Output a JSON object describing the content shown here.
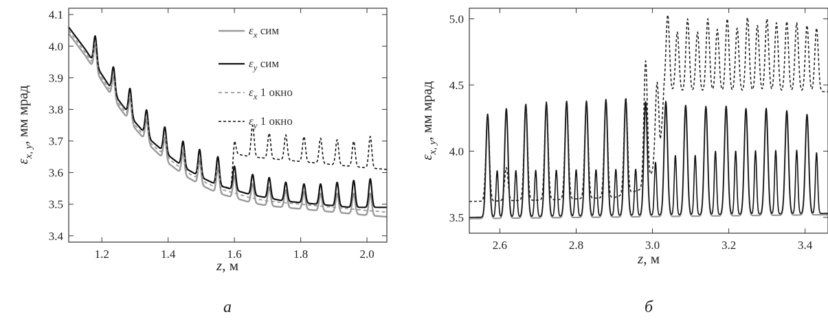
{
  "chart_data": [
    {
      "type": "line",
      "panel_label": "а",
      "xlabel": {
        "var": "z",
        "unit": ", м"
      },
      "ylabel": {
        "var": "ε",
        "sub": "x, y",
        "unit": ", мм мрад"
      },
      "xlim": [
        1.1,
        2.06
      ],
      "ylim": [
        3.38,
        4.12
      ],
      "xticks": [
        "1.2",
        "1.4",
        "1.6",
        "1.8",
        "2.0"
      ],
      "yticks": [
        "3.4",
        "3.5",
        "3.6",
        "3.7",
        "3.8",
        "3.9",
        "4.0",
        "4.1"
      ],
      "grid": false,
      "legend_position": "top-right",
      "series": [
        {
          "legend": {
            "var": "ε",
            "sub": "x",
            "suffix": " сим"
          },
          "color": "#999999",
          "dash": "",
          "width": 2.4,
          "x": [
            1.1,
            1.15,
            1.2,
            1.25,
            1.3,
            1.35,
            1.4,
            1.45,
            1.5,
            1.55,
            1.6,
            1.65,
            1.7,
            1.75,
            1.8,
            1.85,
            1.9,
            1.95,
            2.0,
            2.06
          ],
          "y": [
            4.04,
            3.97,
            3.89,
            3.81,
            3.74,
            3.68,
            3.63,
            3.59,
            3.56,
            3.535,
            3.52,
            3.505,
            3.495,
            3.49,
            3.485,
            3.48,
            3.475,
            3.47,
            3.465,
            3.46
          ],
          "peak_x": [
            1.18,
            1.235,
            1.285,
            1.335,
            1.39,
            1.445,
            1.495,
            1.55,
            1.6,
            1.655,
            1.705,
            1.755,
            1.81,
            1.86,
            1.91,
            1.96,
            2.01
          ],
          "peak_height": [
            0.08,
            0.07,
            0.075,
            0.07,
            0.07,
            0.07,
            0.075,
            0.08,
            0.07,
            0.06,
            0.06,
            0.055,
            0.055,
            0.055,
            0.06,
            0.065,
            0.07
          ]
        },
        {
          "legend": {
            "var": "ε",
            "sub": "y",
            "suffix": " сим"
          },
          "color": "#111111",
          "dash": "",
          "width": 2.2,
          "x": [
            1.1,
            1.15,
            1.2,
            1.25,
            1.3,
            1.35,
            1.4,
            1.45,
            1.5,
            1.55,
            1.6,
            1.65,
            1.7,
            1.75,
            1.8,
            1.85,
            1.9,
            1.95,
            2.0,
            2.06
          ],
          "y": [
            4.06,
            3.99,
            3.91,
            3.83,
            3.76,
            3.7,
            3.655,
            3.615,
            3.585,
            3.56,
            3.545,
            3.53,
            3.52,
            3.51,
            3.505,
            3.5,
            3.495,
            3.49,
            3.49,
            3.49
          ],
          "peak_x": [
            1.18,
            1.235,
            1.285,
            1.335,
            1.39,
            1.445,
            1.495,
            1.55,
            1.6,
            1.655,
            1.705,
            1.755,
            1.81,
            1.86,
            1.91,
            1.96,
            2.01
          ],
          "peak_height": [
            0.09,
            0.08,
            0.085,
            0.08,
            0.08,
            0.08,
            0.085,
            0.09,
            0.075,
            0.065,
            0.065,
            0.06,
            0.06,
            0.065,
            0.075,
            0.085,
            0.09
          ]
        },
        {
          "legend": {
            "var": "ε",
            "sub": "x",
            "suffix": " 1 окно"
          },
          "color": "#999999",
          "dash": "5,4",
          "width": 1.8,
          "x": [
            1.1,
            1.15,
            1.2,
            1.25,
            1.3,
            1.35,
            1.4,
            1.45,
            1.5,
            1.55,
            1.6,
            1.65,
            1.7,
            1.75,
            1.8,
            1.85,
            1.9,
            1.95,
            2.0,
            2.06
          ],
          "y": [
            4.05,
            3.98,
            3.9,
            3.82,
            3.75,
            3.69,
            3.645,
            3.605,
            3.575,
            3.55,
            3.535,
            3.52,
            3.51,
            3.505,
            3.5,
            3.495,
            3.49,
            3.485,
            3.48,
            3.475
          ],
          "peak_x": [
            1.18,
            1.235,
            1.285,
            1.335,
            1.39,
            1.445,
            1.495,
            1.55
          ],
          "peak_height": [
            0.08,
            0.07,
            0.075,
            0.07,
            0.07,
            0.07,
            0.075,
            0.08
          ]
        },
        {
          "legend": {
            "var": "ε",
            "sub": "y",
            "suffix": " 1 окно"
          },
          "color": "#111111",
          "dash": "4,3",
          "width": 1.6,
          "x": [
            1.1,
            1.15,
            1.2,
            1.25,
            1.3,
            1.35,
            1.4,
            1.45,
            1.5,
            1.55,
            1.59,
            1.6,
            1.65,
            1.7,
            1.75,
            1.8,
            1.85,
            1.9,
            1.95,
            2.0,
            2.06
          ],
          "y": [
            4.06,
            3.99,
            3.91,
            3.83,
            3.76,
            3.7,
            3.655,
            3.615,
            3.585,
            3.56,
            3.55,
            3.66,
            3.65,
            3.645,
            3.64,
            3.635,
            3.63,
            3.625,
            3.62,
            3.615,
            3.61
          ],
          "peak_x": [
            1.18,
            1.235,
            1.285,
            1.335,
            1.39,
            1.445,
            1.495,
            1.55,
            1.6,
            1.655,
            1.705,
            1.755,
            1.81,
            1.86,
            1.91,
            1.96,
            2.01
          ],
          "peak_height": [
            0.09,
            0.08,
            0.085,
            0.08,
            0.08,
            0.08,
            0.085,
            0.09,
            0.04,
            0.1,
            0.08,
            0.08,
            0.08,
            0.08,
            0.08,
            0.08,
            0.1
          ]
        }
      ]
    },
    {
      "type": "line",
      "panel_label": "б",
      "xlabel": {
        "var": "z",
        "unit": ", м"
      },
      "ylabel": {
        "var": "ε",
        "sub": "x, y",
        "unit": ", мм мрад"
      },
      "xlim": [
        2.52,
        3.46
      ],
      "ylim": [
        3.38,
        5.08
      ],
      "xticks": [
        "2.6",
        "2.8",
        "3.0",
        "3.2",
        "3.4"
      ],
      "yticks": [
        "3.5",
        "4.0",
        "4.5",
        "5.0"
      ],
      "grid": false,
      "series": [
        {
          "color": "#999999",
          "dash": "",
          "width": 2.2,
          "x": [
            2.52,
            3.46
          ],
          "y": [
            3.49,
            3.52
          ],
          "peak_x": [
            2.568,
            2.617,
            2.668,
            2.722,
            2.775,
            2.827,
            2.878,
            2.93,
            2.982,
            3.035,
            3.087,
            3.14,
            3.193,
            3.245,
            3.298,
            3.352,
            3.405
          ],
          "peak_height": [
            0.78,
            0.82,
            0.85,
            0.86,
            0.87,
            0.87,
            0.88,
            0.88,
            0.86,
            0.86,
            0.83,
            0.82,
            0.82,
            0.8,
            0.8,
            0.78,
            0.75
          ]
        },
        {
          "color": "#111111",
          "dash": "",
          "width": 1.6,
          "x": [
            2.52,
            3.46
          ],
          "y": [
            3.5,
            3.53
          ],
          "peak_x": [
            2.568,
            2.617,
            2.668,
            2.722,
            2.775,
            2.827,
            2.878,
            2.93,
            2.982,
            3.035,
            3.087,
            3.14,
            3.193,
            3.245,
            3.298,
            3.352,
            3.405
          ],
          "peak_height": [
            0.78,
            0.82,
            0.85,
            0.86,
            0.87,
            0.87,
            0.88,
            0.88,
            0.86,
            0.86,
            0.83,
            0.82,
            0.82,
            0.8,
            0.8,
            0.78,
            0.75
          ],
          "minor_peak_x": [
            2.593,
            2.642,
            2.694,
            2.748,
            2.8,
            2.852,
            2.904,
            2.956,
            3.008,
            3.06,
            3.112,
            3.165,
            3.218,
            3.27,
            3.323,
            3.378,
            3.43
          ],
          "minor_peak_height": [
            0.35,
            0.35,
            0.35,
            0.35,
            0.35,
            0.35,
            0.35,
            0.35,
            0.4,
            0.45,
            0.45,
            0.48,
            0.48,
            0.48,
            0.48,
            0.48,
            0.46
          ]
        },
        {
          "color": "#222222",
          "dash": "4,3",
          "width": 1.6,
          "x": [
            2.52,
            2.7,
            2.9,
            2.98,
            3.02,
            3.03,
            3.1,
            3.2,
            3.3,
            3.4,
            3.46
          ],
          "y": [
            3.62,
            3.63,
            3.65,
            3.72,
            3.97,
            4.45,
            4.45,
            4.45,
            4.45,
            4.45,
            4.45
          ],
          "peak_x": [
            2.568,
            2.617,
            2.668,
            2.722,
            2.775,
            2.827,
            2.878,
            2.93,
            2.982,
            3.012,
            3.04,
            3.065,
            3.092,
            3.118,
            3.145,
            3.17,
            3.196,
            3.222,
            3.249,
            3.275,
            3.3,
            3.325,
            3.352,
            3.378,
            3.405,
            3.43
          ],
          "peak_height": [
            0.65,
            0.25,
            0.73,
            0.74,
            0.74,
            0.73,
            0.73,
            0.73,
            0.95,
            0.6,
            0.58,
            0.45,
            0.55,
            0.45,
            0.55,
            0.47,
            0.55,
            0.48,
            0.56,
            0.5,
            0.55,
            0.52,
            0.53,
            0.52,
            0.5,
            0.48
          ]
        }
      ]
    }
  ]
}
